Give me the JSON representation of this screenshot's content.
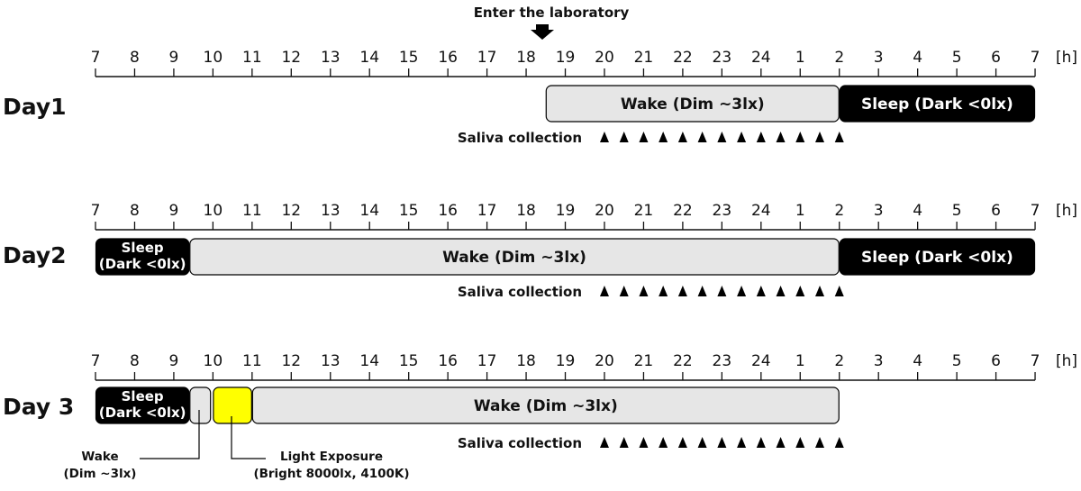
{
  "header": {
    "enter_label": "Enter the laboratory"
  },
  "axis": {
    "ticks": [
      "7",
      "8",
      "9",
      "10",
      "11",
      "12",
      "13",
      "14",
      "15",
      "16",
      "17",
      "18",
      "19",
      "20",
      "21",
      "22",
      "23",
      "24",
      "1",
      "2",
      "3",
      "4",
      "5",
      "6",
      "7"
    ],
    "unit": "[h]"
  },
  "days": [
    {
      "label": "Day1",
      "bars": [
        {
          "kind": "wake",
          "start": 18.5,
          "end": 26,
          "label": "Wake (Dim ~3lx)"
        },
        {
          "kind": "sleep",
          "start": 26,
          "end": 31,
          "label": "Sleep (Dark <0lx)"
        }
      ],
      "saliva_label": "Saliva collection",
      "saliva_times": [
        20,
        20.5,
        21,
        21.5,
        22,
        22.5,
        23,
        23.5,
        24,
        24.5,
        25,
        25.5,
        26
      ]
    },
    {
      "label": "Day2",
      "bars": [
        {
          "kind": "sleep",
          "start": 7,
          "end": 9.4,
          "label_lines": [
            "Sleep",
            "(Dark <0lx)"
          ]
        },
        {
          "kind": "wake",
          "start": 9.4,
          "end": 26,
          "label": "Wake (Dim ~3lx)"
        },
        {
          "kind": "sleep",
          "start": 26,
          "end": 31,
          "label": "Sleep (Dark <0lx)"
        }
      ],
      "saliva_label": "Saliva collection",
      "saliva_times": [
        20,
        20.5,
        21,
        21.5,
        22,
        22.5,
        23,
        23.5,
        24,
        24.5,
        25,
        25.5,
        26
      ]
    },
    {
      "label": "Day 3",
      "bars": [
        {
          "kind": "sleep",
          "start": 7,
          "end": 9.4,
          "label_lines": [
            "Sleep",
            "(Dark <0lx)"
          ]
        },
        {
          "kind": "wake",
          "start": 9.4,
          "end": 9.95,
          "label": ""
        },
        {
          "kind": "light",
          "start": 10,
          "end": 11,
          "label": ""
        },
        {
          "kind": "wake",
          "start": 11,
          "end": 26,
          "label": "Wake (Dim ~3lx)"
        }
      ],
      "saliva_label": "Saliva collection",
      "saliva_times": [
        20,
        20.5,
        21,
        21.5,
        22,
        22.5,
        23,
        23.5,
        24,
        24.5,
        25,
        25.5,
        26
      ]
    }
  ],
  "annotations": {
    "wake_lines": [
      "Wake",
      "(Dim ~3lx)"
    ],
    "light_lines": [
      "Light Exposure",
      "(Bright 8000lx, 4100K)"
    ]
  },
  "colors": {
    "wake_fill": "#e6e6e6",
    "sleep_fill": "#000000",
    "light_fill": "#ffff00",
    "axis": "#111111"
  }
}
